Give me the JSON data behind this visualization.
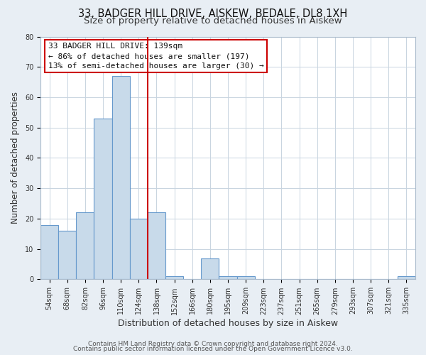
{
  "title1": "33, BADGER HILL DRIVE, AISKEW, BEDALE, DL8 1XH",
  "title2": "Size of property relative to detached houses in Aiskew",
  "xlabel": "Distribution of detached houses by size in Aiskew",
  "ylabel": "Number of detached properties",
  "bar_labels": [
    "54sqm",
    "68sqm",
    "82sqm",
    "96sqm",
    "110sqm",
    "124sqm",
    "138sqm",
    "152sqm",
    "166sqm",
    "180sqm",
    "195sqm",
    "209sqm",
    "223sqm",
    "237sqm",
    "251sqm",
    "265sqm",
    "279sqm",
    "293sqm",
    "307sqm",
    "321sqm",
    "335sqm"
  ],
  "bar_values": [
    18,
    16,
    22,
    53,
    67,
    20,
    22,
    1,
    0,
    7,
    1,
    1,
    0,
    0,
    0,
    0,
    0,
    0,
    0,
    0,
    1
  ],
  "bar_color": "#c8daea",
  "bar_edge_color": "#6699cc",
  "subject_line_color": "#cc0000",
  "subject_line_index": 6,
  "annotation_text_line1": "33 BADGER HILL DRIVE: 139sqm",
  "annotation_text_line2": "← 86% of detached houses are smaller (197)",
  "annotation_text_line3": "13% of semi-detached houses are larger (30) →",
  "ylim": [
    0,
    80
  ],
  "yticks": [
    0,
    10,
    20,
    30,
    40,
    50,
    60,
    70,
    80
  ],
  "bg_color": "#e8eef4",
  "plot_bg_color": "#ffffff",
  "grid_color": "#c8d4e0",
  "footer1": "Contains HM Land Registry data © Crown copyright and database right 2024.",
  "footer2": "Contains public sector information licensed under the Open Government Licence v3.0.",
  "title1_fontsize": 10.5,
  "title2_fontsize": 9.5,
  "xlabel_fontsize": 9,
  "ylabel_fontsize": 8.5,
  "tick_fontsize": 7,
  "annotation_fontsize": 8,
  "footer_fontsize": 6.5,
  "ann_box_color": "#cc0000",
  "ann_text_color": "#111111"
}
